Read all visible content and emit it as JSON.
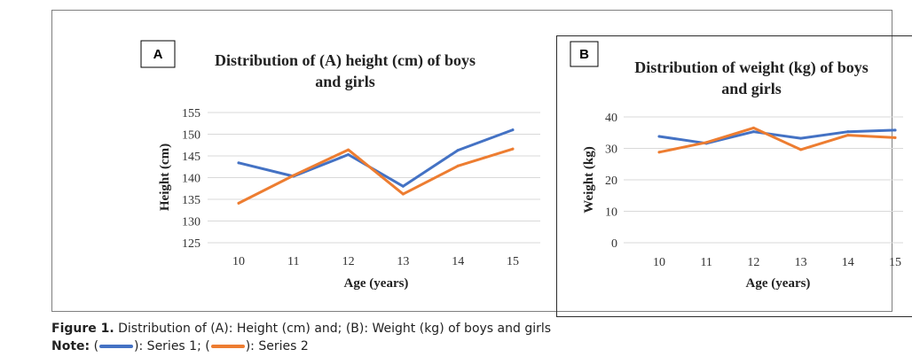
{
  "caption": {
    "figure_label": "Figure 1.",
    "figure_text": " Distribution of (A): Height (cm) and; (B): Weight (kg) of boys and girls",
    "note_label": "Note:",
    "note_open_1": " (",
    "note_series1": "): Series 1; (",
    "note_series2": "): Series 2"
  },
  "colors": {
    "series1": "#4472c4",
    "series2": "#ed7d31",
    "grid": "#d9d9d9"
  },
  "chart_data": [
    {
      "type": "line",
      "panel_label": "A",
      "title": "Distribution of (A) height (cm) of boys and girls",
      "title_lines": [
        "Distribution  of (A) height (cm) of boys",
        "and girls"
      ],
      "xlabel": "Age (years)",
      "ylabel": "Height (cm)",
      "categories": [
        "10",
        "11",
        "12",
        "13",
        "14",
        "15"
      ],
      "ylim": [
        125,
        155
      ],
      "yticks": [
        125,
        130,
        135,
        140,
        145,
        150,
        155
      ],
      "grid": true,
      "series": [
        {
          "name": "Series 1",
          "values": [
            143.4,
            140.3,
            145.3,
            138.0,
            146.3,
            151.0
          ]
        },
        {
          "name": "Series 2",
          "values": [
            134.1,
            140.5,
            146.4,
            136.2,
            142.7,
            146.6
          ]
        }
      ]
    },
    {
      "type": "line",
      "panel_label": "B",
      "title": "Distribution of weight (kg) of boys and girls",
      "title_lines": [
        "Distribution  of weight (kg) of boys",
        "and girls"
      ],
      "xlabel": "Age (years)",
      "ylabel": "Weight (kg)",
      "categories": [
        "10",
        "11",
        "12",
        "13",
        "14",
        "15"
      ],
      "ylim": [
        0,
        40
      ],
      "yticks": [
        0,
        10,
        20,
        30,
        40
      ],
      "grid": true,
      "series": [
        {
          "name": "Series 1",
          "values": [
            33.8,
            31.6,
            35.3,
            33.2,
            35.3,
            35.8
          ]
        },
        {
          "name": "Series 2",
          "values": [
            28.8,
            31.9,
            36.5,
            29.6,
            34.2,
            33.4
          ]
        }
      ]
    }
  ]
}
